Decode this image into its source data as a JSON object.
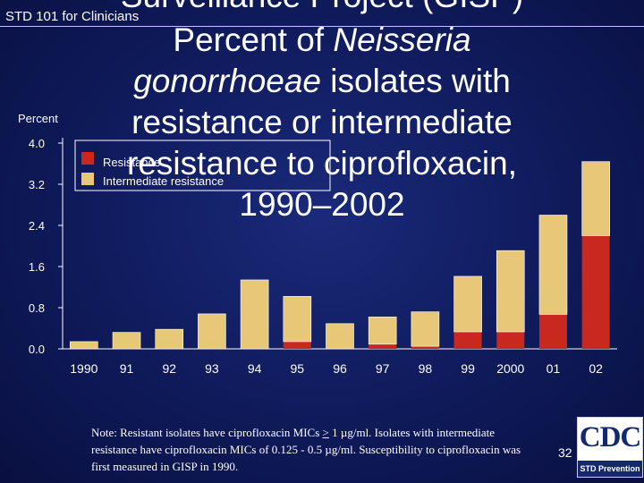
{
  "header": {
    "course_label": "STD 101 for Clinicians"
  },
  "title": {
    "line0": "Surveillance Project (GISP)",
    "line1": "Percent of ",
    "line1_italic": "Neisseria",
    "line2_italic": "gonorrhoeae",
    "line2": " isolates with",
    "line3": "resistance or intermediate",
    "line4": "resistance to ciprofloxacin,",
    "line5": "1990–2002"
  },
  "chart_data": {
    "type": "bar",
    "stacked": true,
    "ylabel": "Percent",
    "ylim": [
      0,
      4.0
    ],
    "yticks": [
      "0.0",
      "0.8",
      "1.6",
      "2.4",
      "3.2",
      "4.0"
    ],
    "categories": [
      "1990",
      "91",
      "92",
      "93",
      "94",
      "95",
      "96",
      "97",
      "98",
      "99",
      "2000",
      "01",
      "02"
    ],
    "series": [
      {
        "name": "Resistance",
        "color": "#c8281e",
        "values": [
          0.0,
          0.0,
          0.0,
          0.0,
          0.0,
          0.14,
          0.0,
          0.09,
          0.05,
          0.33,
          0.33,
          0.67,
          2.2
        ]
      },
      {
        "name": "Intermediate resistance",
        "color": "#e6c878",
        "values": [
          0.14,
          0.32,
          0.38,
          0.68,
          1.34,
          0.88,
          0.49,
          0.53,
          0.67,
          1.08,
          1.58,
          1.93,
          1.44
        ]
      }
    ],
    "legend": "top-left"
  },
  "note": {
    "prefix": "Note: Resistant isolates have ciprofloxacin MICs ",
    "ge": ">",
    "after_ge": " 1 µg/ml. Isolates with intermediate resistance have ciprofloxacin MICs of 0.125 - 0.5 µg/ml. Susceptibility to ciprofloxacin was first measured in GISP in 1990."
  },
  "footer": {
    "page_number": "32",
    "logo_text": "CDC",
    "logo_band": "STD Prevention"
  }
}
